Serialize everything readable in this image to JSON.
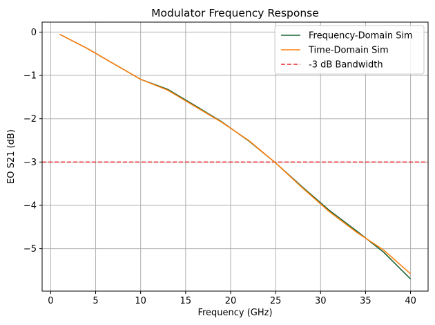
{
  "chart_data": {
    "type": "line",
    "title": "Modulator Frequency Response",
    "xlabel": "Frequency (GHz)",
    "ylabel": "EO S21 (dB)",
    "xlim": [
      -0.95,
      41.95
    ],
    "ylim": [
      -5.98,
      0.23
    ],
    "xticks": [
      0,
      5,
      10,
      15,
      20,
      25,
      30,
      35,
      40
    ],
    "yticks": [
      0,
      -1,
      -2,
      -3,
      -4,
      -5
    ],
    "xtick_labels": [
      "0",
      "5",
      "10",
      "15",
      "20",
      "25",
      "30",
      "35",
      "40"
    ],
    "ytick_labels": [
      "0",
      "−1",
      "−2",
      "−3",
      "−4",
      "−5"
    ],
    "grid": true,
    "legend_position": "top-right",
    "series": [
      {
        "name": "Frequency-Domain Sim",
        "color": "#1b6535",
        "style": "solid",
        "x": [
          1,
          4,
          7,
          10,
          13,
          16,
          19,
          22,
          25,
          28,
          31,
          34,
          37,
          40
        ],
        "y": [
          -0.05,
          -0.37,
          -0.73,
          -1.09,
          -1.32,
          -1.69,
          -2.07,
          -2.51,
          -3.02,
          -3.58,
          -4.12,
          -4.59,
          -5.08,
          -5.7
        ]
      },
      {
        "name": "Time-Domain Sim",
        "color": "#ff7f0e",
        "style": "solid",
        "x": [
          1,
          4,
          7,
          10,
          13,
          16,
          19,
          22,
          25,
          28,
          31,
          34,
          37,
          40
        ],
        "y": [
          -0.05,
          -0.37,
          -0.73,
          -1.09,
          -1.34,
          -1.71,
          -2.08,
          -2.5,
          -3.02,
          -3.6,
          -4.15,
          -4.62,
          -5.03,
          -5.58
        ]
      }
    ],
    "reference_lines": [
      {
        "name": "-3 dB Bandwidth",
        "orientation": "horizontal",
        "y": -3,
        "color": "#e8262c",
        "style": "dashed"
      }
    ]
  }
}
